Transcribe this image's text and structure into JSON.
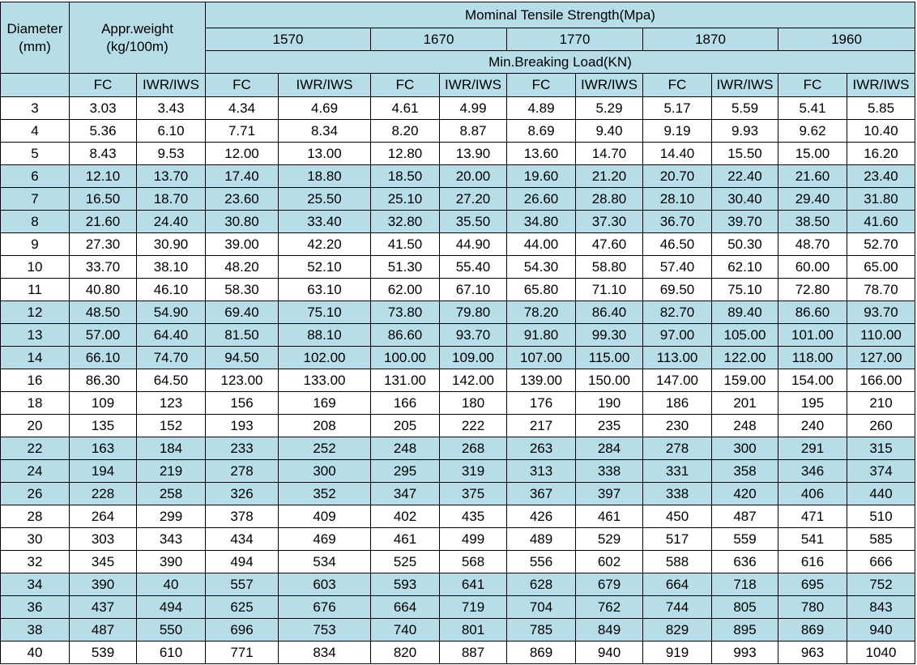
{
  "header": {
    "diameter": "Diameter\n(mm)",
    "weight": "Appr.weight\n(kg/100m)",
    "strength": "Mominal Tensile Strength(Mpa)",
    "grades": [
      "1570",
      "1670",
      "1770",
      "1870",
      "1960"
    ],
    "breaking_load": "Min.Breaking Load(KN)",
    "sub": [
      "FC",
      "IWR/IWS",
      "FC",
      "IWR/IWS",
      "FC",
      "IWR/IWS",
      "FC",
      "IWR/IWS",
      "FC",
      "IWR/IWS",
      "FC",
      "IWR/IWS"
    ]
  },
  "colors": {
    "header_fill": "#b7dde8",
    "band_fill": "#b7dde8",
    "plain_fill": "#ffffff"
  },
  "rows": [
    [
      "3",
      "3.03",
      "3.43",
      "4.34",
      "4.69",
      "4.61",
      "4.99",
      "4.89",
      "5.29",
      "5.17",
      "5.59",
      "5.41",
      "5.85"
    ],
    [
      "4",
      "5.36",
      "6.10",
      "7.71",
      "8.34",
      "8.20",
      "8.87",
      "8.69",
      "9.40",
      "9.19",
      "9.93",
      "9.62",
      "10.40"
    ],
    [
      "5",
      "8.43",
      "9.53",
      "12.00",
      "13.00",
      "12.80",
      "13.90",
      "13.60",
      "14.70",
      "14.40",
      "15.50",
      "15.00",
      "16.20"
    ],
    [
      "6",
      "12.10",
      "13.70",
      "17.40",
      "18.80",
      "18.50",
      "20.00",
      "19.60",
      "21.20",
      "20.70",
      "22.40",
      "21.60",
      "23.40"
    ],
    [
      "7",
      "16.50",
      "18.70",
      "23.60",
      "25.50",
      "25.10",
      "27.20",
      "26.60",
      "28.80",
      "28.10",
      "30.40",
      "29.40",
      "31.80"
    ],
    [
      "8",
      "21.60",
      "24.40",
      "30.80",
      "33.40",
      "32.80",
      "35.50",
      "34.80",
      "37.30",
      "36.70",
      "39.70",
      "38.50",
      "41.60"
    ],
    [
      "9",
      "27.30",
      "30.90",
      "39.00",
      "42.20",
      "41.50",
      "44.90",
      "44.00",
      "47.60",
      "46.50",
      "50.30",
      "48.70",
      "52.70"
    ],
    [
      "10",
      "33.70",
      "38.10",
      "48.20",
      "52.10",
      "51.30",
      "55.40",
      "54.30",
      "58.80",
      "57.40",
      "62.10",
      "60.00",
      "65.00"
    ],
    [
      "11",
      "40.80",
      "46.10",
      "58.30",
      "63.10",
      "62.00",
      "67.10",
      "65.80",
      "71.10",
      "69.50",
      "75.10",
      "72.80",
      "78.70"
    ],
    [
      "12",
      "48.50",
      "54.90",
      "69.40",
      "75.10",
      "73.80",
      "79.80",
      "78.20",
      "86.40",
      "82.70",
      "89.40",
      "86.60",
      "93.70"
    ],
    [
      "13",
      "57.00",
      "64.40",
      "81.50",
      "88.10",
      "86.60",
      "93.70",
      "91.80",
      "99.30",
      "97.00",
      "105.00",
      "101.00",
      "110.00"
    ],
    [
      "14",
      "66.10",
      "74.70",
      "94.50",
      "102.00",
      "100.00",
      "109.00",
      "107.00",
      "115.00",
      "113.00",
      "122.00",
      "118.00",
      "127.00"
    ],
    [
      "16",
      "86.30",
      "64.50",
      "123.00",
      "133.00",
      "131.00",
      "142.00",
      "139.00",
      "150.00",
      "147.00",
      "159.00",
      "154.00",
      "166.00"
    ],
    [
      "18",
      "109",
      "123",
      "156",
      "169",
      "166",
      "180",
      "176",
      "190",
      "186",
      "201",
      "195",
      "210"
    ],
    [
      "20",
      "135",
      "152",
      "193",
      "208",
      "205",
      "222",
      "217",
      "235",
      "230",
      "248",
      "240",
      "260"
    ],
    [
      "22",
      "163",
      "184",
      "233",
      "252",
      "248",
      "268",
      "263",
      "284",
      "278",
      "300",
      "291",
      "315"
    ],
    [
      "24",
      "194",
      "219",
      "278",
      "300",
      "295",
      "319",
      "313",
      "338",
      "331",
      "358",
      "346",
      "374"
    ],
    [
      "26",
      "228",
      "258",
      "326",
      "352",
      "347",
      "375",
      "367",
      "397",
      "338",
      "420",
      "406",
      "440"
    ],
    [
      "28",
      "264",
      "299",
      "378",
      "409",
      "402",
      "435",
      "426",
      "461",
      "450",
      "487",
      "471",
      "510"
    ],
    [
      "30",
      "303",
      "343",
      "434",
      "469",
      "461",
      "499",
      "489",
      "529",
      "517",
      "559",
      "541",
      "585"
    ],
    [
      "32",
      "345",
      "390",
      "494",
      "534",
      "525",
      "568",
      "556",
      "602",
      "588",
      "636",
      "616",
      "666"
    ],
    [
      "34",
      "390",
      "40",
      "557",
      "603",
      "593",
      "641",
      "628",
      "679",
      "664",
      "718",
      "695",
      "752"
    ],
    [
      "36",
      "437",
      "494",
      "625",
      "676",
      "664",
      "719",
      "704",
      "762",
      "744",
      "805",
      "780",
      "843"
    ],
    [
      "38",
      "487",
      "550",
      "696",
      "753",
      "740",
      "801",
      "785",
      "849",
      "829",
      "895",
      "869",
      "940"
    ],
    [
      "40",
      "539",
      "610",
      "771",
      "834",
      "820",
      "887",
      "869",
      "940",
      "919",
      "993",
      "963",
      "1040"
    ]
  ]
}
